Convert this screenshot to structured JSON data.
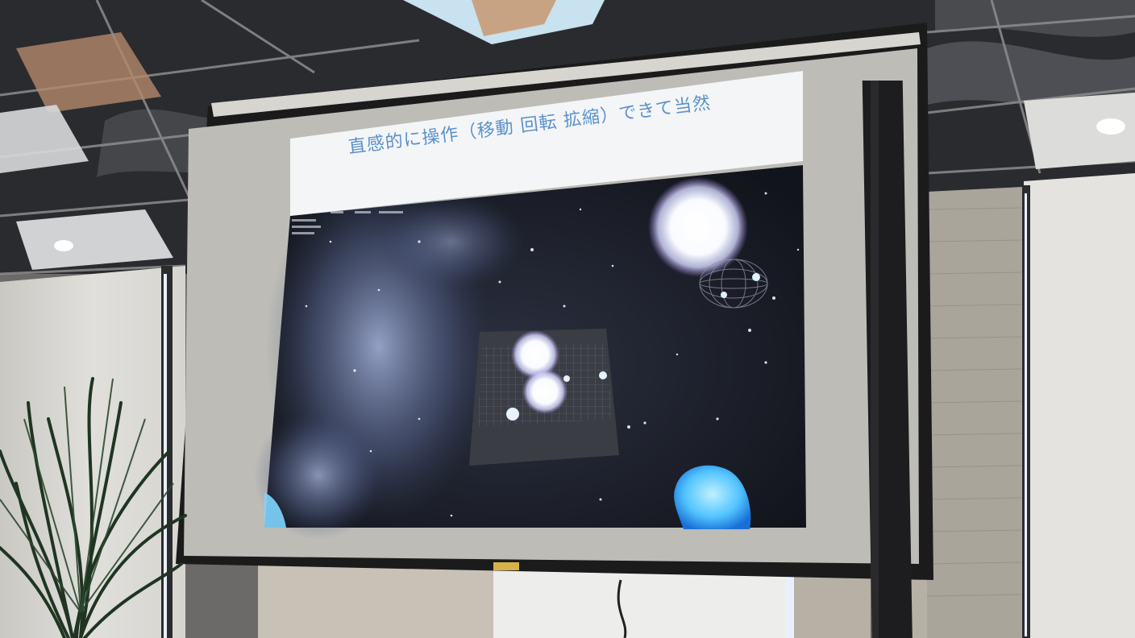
{
  "slide": {
    "title": "直感的に操作（移動 回転 拡縮）できて当然"
  },
  "colors": {
    "ceiling": "#2a2b2e",
    "wall": "#d9d8d3",
    "screen_frame": "#1b1b1c",
    "screen_surface": "#bdbcb7",
    "title_bar": "#f4f5f7",
    "title_text": "#4a88c7",
    "space": "#1a1d26",
    "nebula": "#7d8db6",
    "hand": "#5cc7ff"
  },
  "objects": [
    "ceiling-grid",
    "ceiling-lights",
    "duct",
    "wall",
    "blinds",
    "projection-screen",
    "stand-pole",
    "potted-plant",
    "cable"
  ],
  "icons": [
    "ceiling-light-icon",
    "planet-icon",
    "star-icon",
    "hand-controller-icon"
  ]
}
